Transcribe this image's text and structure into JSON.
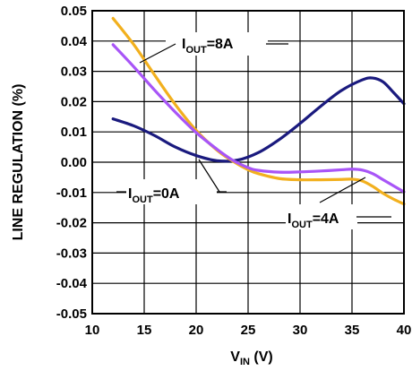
{
  "chart_data": {
    "type": "line",
    "title": "",
    "xlabel": {
      "main": "V",
      "sub": "IN",
      "suffix": " (V)"
    },
    "ylabel": "LINE REGULATION (%)",
    "xlim": [
      10,
      40
    ],
    "ylim": [
      -0.05,
      0.05
    ],
    "x_ticks": [
      10,
      15,
      20,
      25,
      30,
      35,
      40
    ],
    "x_tick_labels": [
      "10",
      "15",
      "20",
      "25",
      "30",
      "35",
      "40"
    ],
    "y_ticks": [
      0.05,
      0.04,
      0.03,
      0.02,
      0.01,
      0.0,
      -0.01,
      -0.02,
      -0.03,
      -0.04,
      -0.05
    ],
    "y_tick_labels": [
      "0.05",
      "0.04",
      "0.03",
      "0.02",
      "0.01",
      "0.00",
      "-0.01",
      "-0.02",
      "-0.03",
      "-0.04",
      "-0.05"
    ],
    "grid": true,
    "series": [
      {
        "name": "I_OUT=0A",
        "color": "#1a1a7e",
        "x": [
          12,
          14,
          16,
          18,
          20,
          22,
          24,
          26,
          28,
          30,
          32,
          34,
          36,
          37,
          38,
          39,
          40
        ],
        "y": [
          0.0143,
          0.012,
          0.0088,
          0.005,
          0.0022,
          0.0005,
          0.0007,
          0.0032,
          0.0075,
          0.0128,
          0.0185,
          0.0237,
          0.0272,
          0.0278,
          0.0265,
          0.023,
          0.0193
        ]
      },
      {
        "name": "I_OUT=4A",
        "color": "#a855f7",
        "x": [
          12,
          14,
          16,
          18,
          20,
          22,
          23.5,
          25,
          26,
          28,
          30,
          32,
          34,
          35,
          36,
          37,
          38,
          39,
          40
        ],
        "y": [
          0.0388,
          0.0315,
          0.0238,
          0.0165,
          0.0098,
          0.0043,
          0.0007,
          -0.0018,
          -0.0027,
          -0.0033,
          -0.0032,
          -0.0029,
          -0.0025,
          -0.0023,
          -0.0026,
          -0.0038,
          -0.0058,
          -0.0078,
          -0.0098
        ]
      },
      {
        "name": "I_OUT=8A",
        "color": "#f2b01e",
        "x": [
          12,
          14,
          16,
          18,
          20,
          22,
          23.5,
          25,
          26,
          28,
          30,
          32,
          34,
          35,
          36,
          37,
          38,
          39,
          40
        ],
        "y": [
          0.0475,
          0.0388,
          0.0288,
          0.019,
          0.0105,
          0.004,
          0.0004,
          -0.0025,
          -0.0038,
          -0.0054,
          -0.0058,
          -0.0058,
          -0.0057,
          -0.0056,
          -0.0062,
          -0.008,
          -0.0103,
          -0.0122,
          -0.0138
        ]
      }
    ],
    "annotations": [
      {
        "target": "I_OUT=8A",
        "main": "I",
        "sub": "OUT",
        "suffix": "=8A"
      },
      {
        "target": "I_OUT=0A",
        "main": "I",
        "sub": "OUT",
        "suffix": "=0A"
      },
      {
        "target": "I_OUT=4A",
        "main": "I",
        "sub": "OUT",
        "suffix": "=4A"
      }
    ]
  }
}
